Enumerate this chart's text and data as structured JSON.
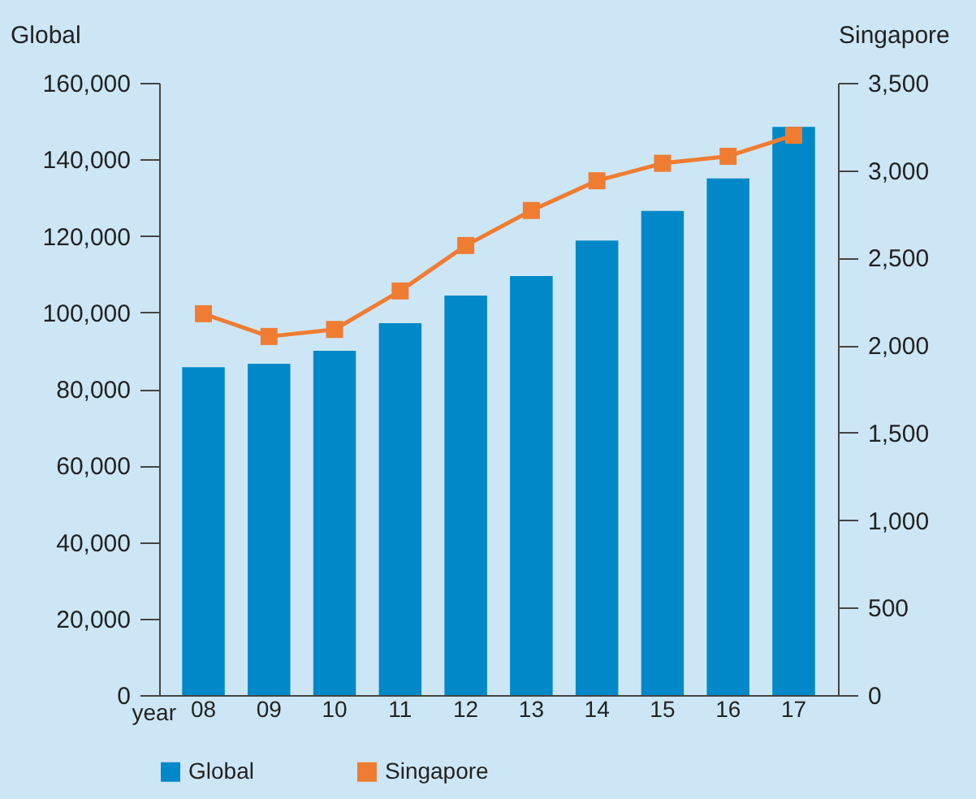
{
  "chart_data": {
    "type": "bar",
    "xlabel": "year",
    "ylabel": "Global",
    "y2label": "Singapore",
    "categories": [
      "08",
      "09",
      "10",
      "11",
      "12",
      "13",
      "14",
      "15",
      "16",
      "17"
    ],
    "series": [
      {
        "name": "Global",
        "color": "#0088c8",
        "values": [
          85700,
          86600,
          90000,
          97200,
          104400,
          109500,
          118800,
          126500,
          135000,
          148500
        ]
      },
      {
        "name": "Singapore",
        "type": "line",
        "axis": "y2",
        "color": "#f07c32",
        "values": [
          2180,
          2050,
          2090,
          2310,
          2570,
          2770,
          2940,
          3040,
          3080,
          3200
        ]
      }
    ],
    "ylim": [
      0,
      160000
    ],
    "yticks": [
      0,
      {
        "value": 20000,
        "label": "20,000"
      },
      {
        "value": 40000,
        "label": "40,000"
      },
      {
        "value": 60000,
        "label": "60,000"
      },
      {
        "value": 80000,
        "label": "80,000"
      },
      {
        "value": 100000,
        "label": "100,000"
      },
      {
        "value": 120000,
        "label": "120,000"
      },
      {
        "value": 140000,
        "label": "140,000"
      },
      {
        "value": 160000,
        "label": "160,000"
      }
    ],
    "y2lim": [
      0,
      3500
    ],
    "y2ticks": [
      0,
      500,
      {
        "value": 1000,
        "label": "1,000"
      },
      {
        "value": 1500,
        "label": "1,500"
      },
      {
        "value": 2000,
        "label": "2,000"
      },
      {
        "value": 2500,
        "label": "2,500"
      },
      {
        "value": 3000,
        "label": "3,000"
      },
      {
        "value": 3500,
        "label": "3,500"
      }
    ],
    "legend": "bottom",
    "marker": "square"
  }
}
